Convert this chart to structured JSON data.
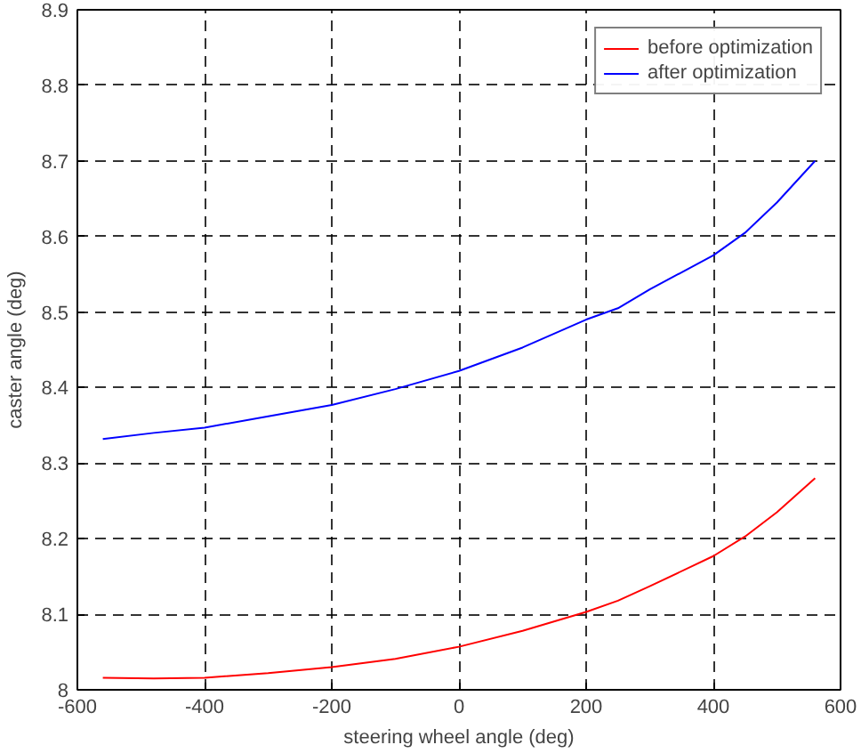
{
  "chart_data": {
    "type": "line",
    "xlabel": "steering wheel angle (deg)",
    "ylabel": "caster angle (deg)",
    "x": [
      -560,
      -480,
      -400,
      -300,
      -200,
      -100,
      0,
      100,
      200,
      250,
      300,
      400,
      450,
      500,
      560
    ],
    "series": [
      {
        "name": "before optimization",
        "color": "#ff0000",
        "values": [
          8.016,
          8.015,
          8.016,
          8.022,
          8.03,
          8.041,
          8.057,
          8.078,
          8.103,
          8.118,
          8.137,
          8.177,
          8.203,
          8.235,
          8.28
        ]
      },
      {
        "name": "after optimization",
        "color": "#0000ff",
        "values": [
          8.332,
          8.34,
          8.347,
          8.362,
          8.377,
          8.398,
          8.422,
          8.453,
          8.49,
          8.505,
          8.53,
          8.575,
          8.605,
          8.645,
          8.7
        ]
      }
    ],
    "xlim": [
      -600,
      600
    ],
    "ylim": [
      8,
      8.9
    ],
    "xticks": [
      -600,
      -400,
      -200,
      0,
      200,
      400,
      600
    ],
    "yticks": [
      8,
      8.1,
      8.2,
      8.3,
      8.4,
      8.5,
      8.6,
      8.7,
      8.8,
      8.9
    ],
    "grid": true,
    "legend": "top right",
    "line_style": "solid",
    "marker": "none"
  }
}
